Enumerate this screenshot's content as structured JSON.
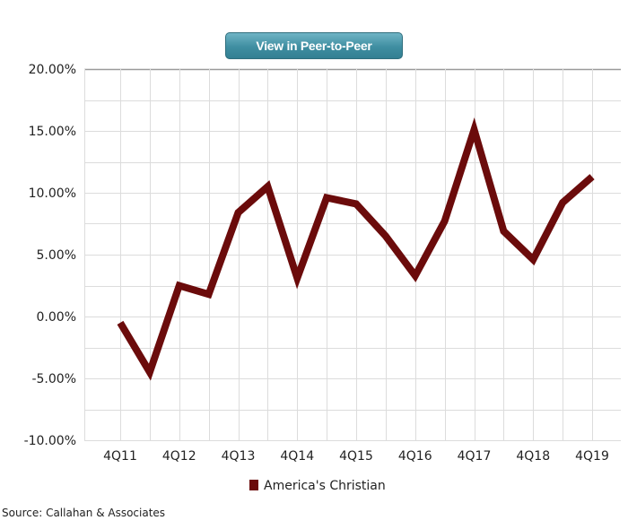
{
  "header": {
    "peer_button_label": "View in Peer-to-Peer"
  },
  "source": "Source: Callahan & Associates",
  "colors": {
    "series": "#6b0b0b",
    "grid": "#dcdcdc",
    "axis": "#9a9a9a",
    "button_top": "#6fb4c5",
    "button_bottom": "#337f92"
  },
  "chart_data": {
    "type": "line",
    "title": "",
    "xlabel": "",
    "ylabel": "",
    "ylim": [
      -10,
      20
    ],
    "y_ticks": [
      20,
      15,
      10,
      5,
      0,
      -5,
      -10
    ],
    "y_tick_labels": [
      "20.00%",
      "15.00%",
      "10.00%",
      "5.00%",
      "0.00%",
      "-5.00%",
      "-10.00%"
    ],
    "x_tick_labels": [
      "4Q11",
      "4Q12",
      "4Q13",
      "4Q14",
      "4Q15",
      "4Q16",
      "4Q17",
      "4Q18",
      "4Q19"
    ],
    "x": [
      "4Q11",
      "2Q12",
      "4Q12",
      "2Q13",
      "4Q13",
      "2Q14",
      "4Q14",
      "2Q15",
      "4Q15",
      "2Q16",
      "4Q16",
      "2Q17",
      "4Q17",
      "2Q18",
      "4Q18",
      "2Q19",
      "4Q19"
    ],
    "grid": true,
    "legend_position": "bottom",
    "series": [
      {
        "name": "America's Christian",
        "values": [
          -0.5,
          -4.5,
          2.5,
          1.8,
          8.4,
          10.5,
          3.1,
          9.6,
          9.1,
          6.5,
          3.3,
          7.7,
          15.1,
          6.9,
          4.6,
          9.2,
          11.3
        ]
      }
    ]
  }
}
